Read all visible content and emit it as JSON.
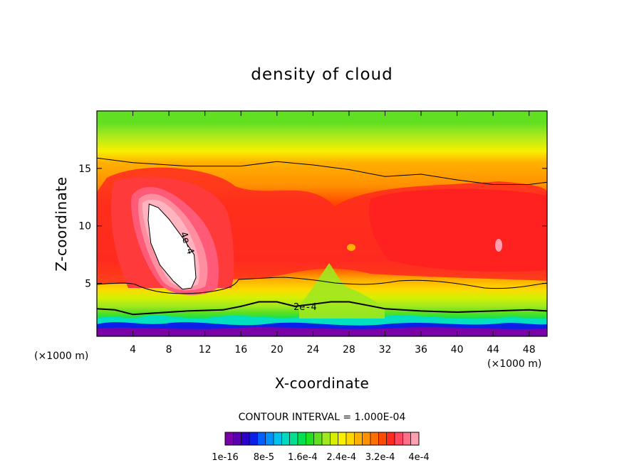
{
  "chart_data": {
    "type": "heatmap",
    "title": "density of cloud",
    "xlabel": "X-coordinate",
    "ylabel": "Z-coordinate",
    "x_unit_label": "(×1000 m)",
    "x_unit_label_left": "(×1000 m)",
    "xlim": [
      0,
      50
    ],
    "ylim": [
      0.4,
      20
    ],
    "x_ticks": [
      4,
      8,
      12,
      16,
      20,
      24,
      28,
      32,
      36,
      40,
      44,
      48
    ],
    "y_ticks": [
      5,
      10,
      15
    ],
    "contour_interval_text": "CONTOUR INTERVAL = 1.000E-04",
    "contour_labels": [
      "4e-4",
      "2e-4"
    ],
    "colorbar": {
      "colors": [
        "#7a00a8",
        "#5a00b0",
        "#2c00c8",
        "#0a20e8",
        "#0060ff",
        "#0090ff",
        "#00c0f0",
        "#00d8c0",
        "#00e090",
        "#00e050",
        "#20e020",
        "#60e020",
        "#a0e820",
        "#d8f000",
        "#f8f000",
        "#ffd800",
        "#ffb000",
        "#ff9000",
        "#ff7000",
        "#ff4a00",
        "#ff2a20",
        "#ff4860",
        "#ff7088",
        "#ffa0b0"
      ],
      "labels": [
        "1e-16",
        "8e-5",
        "1.6e-4",
        "2.4e-4",
        "3.2e-4",
        "4e-4"
      ]
    },
    "color_bands": [
      {
        "z": 0.4,
        "color": "#7a00a8"
      },
      {
        "z": 0.9,
        "color": "#3a00c0"
      },
      {
        "z": 1.2,
        "color": "#0090ff"
      },
      {
        "z": 1.5,
        "color": "#00e0c0"
      },
      {
        "z": 1.8,
        "color": "#00e050"
      },
      {
        "z": 2.5,
        "color": "#60e020"
      },
      {
        "z": 3.0,
        "color": "#a0e820"
      },
      {
        "z": 3.8,
        "color": "#d8f000"
      },
      {
        "z": 4.5,
        "color": "#ffd800"
      },
      {
        "z": 5.3,
        "color": "#ffb000"
      },
      {
        "z": 6.0,
        "color": "#ff7000"
      },
      {
        "z": 7.0,
        "color": "#ff2a20"
      },
      {
        "z": 12.0,
        "color": "#ff4a00"
      },
      {
        "z": 13.5,
        "color": "#ff9000"
      },
      {
        "z": 15.5,
        "color": "#ffb000"
      },
      {
        "z": 16.5,
        "color": "#f8f000"
      },
      {
        "z": 18.0,
        "color": "#a0e820"
      },
      {
        "z": 19.0,
        "color": "#60e020"
      }
    ],
    "features": [
      {
        "name": "upper-contour",
        "points": [
          [
            0,
            15.9
          ],
          [
            4,
            15.5
          ],
          [
            10,
            15.2
          ],
          [
            16,
            15.2
          ],
          [
            20,
            15.6
          ],
          [
            24,
            15.3
          ],
          [
            28,
            14.9
          ],
          [
            32,
            14.3
          ],
          [
            36,
            14.5
          ],
          [
            40,
            14.0
          ],
          [
            44,
            13.6
          ],
          [
            48,
            13.6
          ],
          [
            50,
            13.8
          ]
        ]
      },
      {
        "name": "lower-contour",
        "points": [
          [
            0,
            2.8
          ],
          [
            2,
            2.7
          ],
          [
            4,
            2.3
          ],
          [
            10,
            2.6
          ],
          [
            14,
            2.7
          ],
          [
            16,
            3.0
          ],
          [
            18,
            3.4
          ],
          [
            20,
            3.4
          ],
          [
            22,
            3.0
          ],
          [
            24,
            3.2
          ],
          [
            26,
            3.4
          ],
          [
            28,
            3.4
          ],
          [
            30,
            3.1
          ],
          [
            32,
            2.8
          ],
          [
            36,
            2.6
          ],
          [
            40,
            2.5
          ],
          [
            44,
            2.6
          ],
          [
            48,
            2.7
          ],
          [
            50,
            2.6
          ]
        ]
      },
      {
        "name": "max-contour",
        "points": [
          [
            5.8,
            11.9
          ],
          [
            6.8,
            11.6
          ],
          [
            8,
            10.6
          ],
          [
            9.5,
            9.0
          ],
          [
            10.8,
            7.5
          ],
          [
            11,
            5.5
          ],
          [
            10.5,
            4.6
          ],
          [
            9.5,
            4.5
          ],
          [
            8.5,
            5.2
          ],
          [
            7,
            6.6
          ],
          [
            6,
            8.5
          ],
          [
            5.7,
            10.5
          ]
        ]
      }
    ]
  }
}
